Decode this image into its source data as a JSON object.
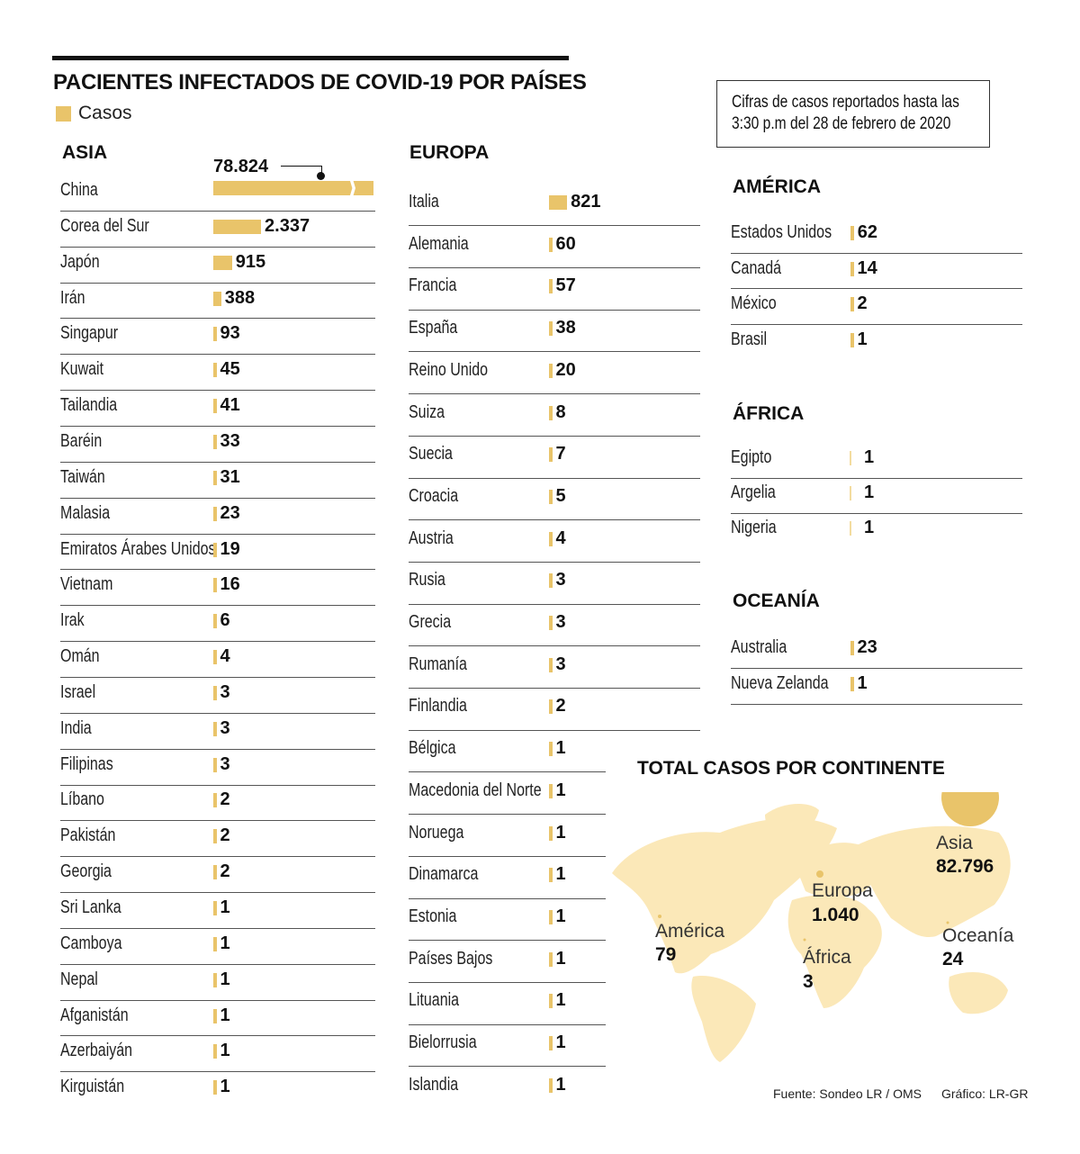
{
  "title": "PACIENTES INFECTADOS DE COVID-19 POR PAÍSES",
  "legend_label": "Casos",
  "note": [
    "Cifras de casos reportados hasta las",
    "3:30 p.m del 28 de febrero de 2020"
  ],
  "colors": {
    "bar": "#e9c46a",
    "map": "#fbe8b8",
    "bubble": "#e9c46a"
  },
  "chart_data": {
    "type": "bar",
    "title": "PACIENTES INFECTADOS DE COVID-19 POR PAÍSES",
    "groups": [
      {
        "name": "ASIA",
        "countries": [
          "China",
          "Corea del Sur",
          "Japón",
          "Irán",
          "Singapur",
          "Kuwait",
          "Tailandia",
          "Baréin",
          "Taiwán",
          "Malasia",
          "Emiratos Árabes Unidos",
          "Vietnam",
          "Irak",
          "Omán",
          "Israel",
          "India",
          "Filipinas",
          "Líbano",
          "Pakistán",
          "Georgia",
          "Sri Lanka",
          "Camboya",
          "Nepal",
          "Afganistán",
          "Azerbaiyán",
          "Kirguistán"
        ],
        "labels": [
          "78.824",
          "2.337",
          "915",
          "388",
          "93",
          "45",
          "41",
          "33",
          "31",
          "23",
          "19",
          "16",
          "6",
          "4",
          "3",
          "3",
          "3",
          "2",
          "2",
          "2",
          "1",
          "1",
          "1",
          "1",
          "1",
          "1"
        ],
        "values": [
          78824,
          2337,
          915,
          388,
          93,
          45,
          41,
          33,
          31,
          23,
          19,
          16,
          6,
          4,
          3,
          3,
          3,
          2,
          2,
          2,
          1,
          1,
          1,
          1,
          1,
          1
        ]
      },
      {
        "name": "EUROPA",
        "countries": [
          "Italia",
          "Alemania",
          "Francia",
          "España",
          "Reino Unido",
          "Suiza",
          "Suecia",
          "Croacia",
          "Austria",
          "Rusia",
          "Grecia",
          "Rumanía",
          "Finlandia",
          "Bélgica",
          "Macedonia del Norte",
          "Noruega",
          "Dinamarca",
          "Estonia",
          "Países Bajos",
          "Lituania",
          "Bielorrusia",
          "Islandia"
        ],
        "labels": [
          "821",
          "60",
          "57",
          "38",
          "20",
          "8",
          "7",
          "5",
          "4",
          "3",
          "3",
          "3",
          "2",
          "1",
          "1",
          "1",
          "1",
          "1",
          "1",
          "1",
          "1",
          "1"
        ],
        "values": [
          821,
          60,
          57,
          38,
          20,
          8,
          7,
          5,
          4,
          3,
          3,
          3,
          2,
          1,
          1,
          1,
          1,
          1,
          1,
          1,
          1,
          1
        ]
      },
      {
        "name": "AMÉRICA",
        "countries": [
          "Estados Unidos",
          "Canadá",
          "México",
          "Brasil"
        ],
        "labels": [
          "62",
          "14",
          "2",
          "1"
        ],
        "values": [
          62,
          14,
          2,
          1
        ]
      },
      {
        "name": "ÁFRICA",
        "countries": [
          "Egipto",
          "Argelia",
          "Nigeria"
        ],
        "labels": [
          "1",
          "1",
          "1"
        ],
        "values": [
          1,
          1,
          1
        ]
      },
      {
        "name": "OCEANÍA",
        "countries": [
          "Australia",
          "Nueva Zelanda"
        ],
        "labels": [
          "23",
          "1"
        ],
        "values": [
          23,
          1
        ]
      }
    ]
  },
  "map": {
    "title": "TOTAL CASOS POR CONTINENTE",
    "continents": [
      {
        "name": "Asia",
        "label": "82.796",
        "value": 82796
      },
      {
        "name": "Europa",
        "label": "1.040",
        "value": 1040
      },
      {
        "name": "América",
        "label": "79",
        "value": 79
      },
      {
        "name": "África",
        "label": "3",
        "value": 3
      },
      {
        "name": "Oceanía",
        "label": "24",
        "value": 24
      }
    ]
  },
  "footer": {
    "source": "Fuente: Sondeo LR / OMS",
    "credit": "Gráfico: LR-GR"
  }
}
